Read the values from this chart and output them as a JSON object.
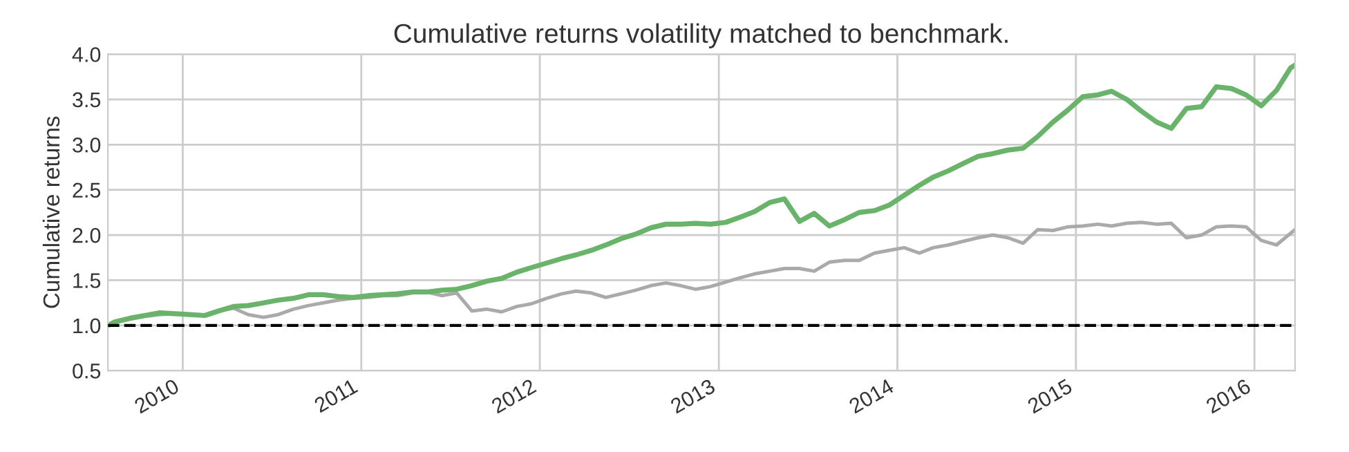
{
  "chart_data": {
    "type": "line",
    "title": "Cumulative returns volatility matched to benchmark.",
    "ylabel": "Cumulative returns",
    "x": [
      "2009-08-01",
      "2009-08-15",
      "2009-09-15",
      "2009-10-15",
      "2009-11-15",
      "2009-12-15",
      "2010-01-15",
      "2010-02-15",
      "2010-03-15",
      "2010-04-15",
      "2010-05-15",
      "2010-06-15",
      "2010-07-15",
      "2010-08-15",
      "2010-09-15",
      "2010-10-15",
      "2010-11-15",
      "2010-12-15",
      "2011-01-15",
      "2011-02-15",
      "2011-03-15",
      "2011-04-15",
      "2011-05-15",
      "2011-06-15",
      "2011-07-15",
      "2011-08-15",
      "2011-09-15",
      "2011-10-15",
      "2011-11-15",
      "2011-12-15",
      "2012-01-15",
      "2012-02-15",
      "2012-03-15",
      "2012-04-15",
      "2012-05-15",
      "2012-06-15",
      "2012-07-15",
      "2012-08-15",
      "2012-09-15",
      "2012-10-15",
      "2012-11-15",
      "2012-12-15",
      "2013-01-15",
      "2013-02-15",
      "2013-03-15",
      "2013-04-15",
      "2013-05-15",
      "2013-06-15",
      "2013-07-15",
      "2013-08-15",
      "2013-09-15",
      "2013-10-15",
      "2013-11-15",
      "2013-12-15",
      "2014-01-15",
      "2014-02-15",
      "2014-03-15",
      "2014-04-15",
      "2014-05-15",
      "2014-06-15",
      "2014-07-15",
      "2014-08-15",
      "2014-09-15",
      "2014-10-15",
      "2014-11-15",
      "2014-12-15",
      "2015-01-15",
      "2015-02-15",
      "2015-03-15",
      "2015-04-15",
      "2015-05-15",
      "2015-06-15",
      "2015-07-15",
      "2015-08-15",
      "2015-09-15",
      "2015-10-15",
      "2015-11-15",
      "2015-12-15",
      "2016-01-15",
      "2016-02-15",
      "2016-03-15",
      "2016-03-24"
    ],
    "series": [
      {
        "color": "#aaaaaa",
        "values": [
          1.0,
          1.03,
          1.07,
          1.1,
          1.12,
          1.13,
          1.12,
          1.11,
          1.16,
          1.19,
          1.12,
          1.09,
          1.12,
          1.18,
          1.22,
          1.25,
          1.28,
          1.3,
          1.31,
          1.33,
          1.33,
          1.36,
          1.37,
          1.33,
          1.36,
          1.16,
          1.18,
          1.15,
          1.21,
          1.24,
          1.3,
          1.35,
          1.38,
          1.36,
          1.31,
          1.35,
          1.39,
          1.44,
          1.47,
          1.44,
          1.4,
          1.43,
          1.48,
          1.53,
          1.57,
          1.6,
          1.63,
          1.63,
          1.6,
          1.7,
          1.72,
          1.72,
          1.8,
          1.83,
          1.86,
          1.8,
          1.86,
          1.89,
          1.93,
          1.97,
          2.0,
          1.97,
          1.91,
          2.06,
          2.05,
          2.09,
          2.1,
          2.12,
          2.1,
          2.13,
          2.14,
          2.12,
          2.13,
          1.97,
          2.0,
          2.09,
          2.1,
          2.09,
          1.94,
          1.89,
          2.02,
          2.06
        ]
      },
      {
        "color": "#6ab36a",
        "values": [
          1.0,
          1.04,
          1.08,
          1.11,
          1.14,
          1.13,
          1.12,
          1.11,
          1.16,
          1.21,
          1.22,
          1.25,
          1.28,
          1.3,
          1.34,
          1.34,
          1.32,
          1.31,
          1.33,
          1.34,
          1.35,
          1.37,
          1.37,
          1.39,
          1.4,
          1.44,
          1.49,
          1.52,
          1.59,
          1.64,
          1.69,
          1.74,
          1.78,
          1.83,
          1.89,
          1.96,
          2.01,
          2.08,
          2.12,
          2.12,
          2.13,
          2.12,
          2.14,
          2.2,
          2.26,
          2.36,
          2.4,
          2.15,
          2.24,
          2.1,
          2.17,
          2.25,
          2.27,
          2.33,
          2.44,
          2.55,
          2.64,
          2.71,
          2.79,
          2.87,
          2.9,
          2.94,
          2.96,
          3.09,
          3.25,
          3.38,
          3.53,
          3.55,
          3.59,
          3.5,
          3.37,
          3.25,
          3.18,
          3.4,
          3.42,
          3.64,
          3.62,
          3.55,
          3.43,
          3.6,
          3.85,
          3.88
        ]
      }
    ],
    "xlim": [
      "2009-08-01",
      "2016-03-24"
    ],
    "xticks": [
      {
        "value": "2010-01-01",
        "label": "2010"
      },
      {
        "value": "2011-01-01",
        "label": "2011"
      },
      {
        "value": "2012-01-01",
        "label": "2012"
      },
      {
        "value": "2013-01-01",
        "label": "2013"
      },
      {
        "value": "2014-01-01",
        "label": "2014"
      },
      {
        "value": "2015-01-01",
        "label": "2015"
      },
      {
        "value": "2016-01-01",
        "label": "2016"
      }
    ],
    "ylim": [
      0.5,
      4.0
    ],
    "yticks": [
      0.5,
      {
        "value": 1.0,
        "label": "1.0"
      },
      1.5,
      {
        "value": 2.0,
        "label": "2.0"
      },
      2.5,
      {
        "value": 3.0,
        "label": "3.0"
      },
      3.5,
      {
        "value": 4.0,
        "label": "4.0"
      }
    ],
    "ref_lines": [
      {
        "axis": "y",
        "value": 1.0,
        "color": "#000000",
        "line_style": "dashed"
      }
    ],
    "grid": true,
    "line_style": "solid"
  }
}
